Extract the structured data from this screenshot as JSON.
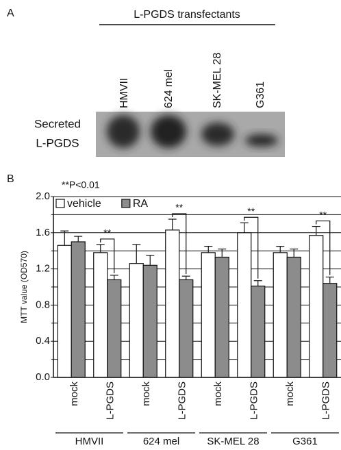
{
  "panel_a": {
    "label": "A",
    "title": "L-PGDS transfectants",
    "lanes": [
      "HMVII",
      "624  mel",
      "SK-MEL 28",
      "G361"
    ],
    "row_label": [
      "Secreted",
      "L-PGDS"
    ]
  },
  "chart_data": {
    "type": "bar",
    "panel_label": "B",
    "annotation": "**P<0.01",
    "y_label": "MTT value (OD570)",
    "categories": [
      "mock",
      "L-PGDS",
      "mock",
      "L-PGDS",
      "mock",
      "L-PGDS",
      "mock",
      "L-PGDS"
    ],
    "groups": [
      "HMVII",
      "624 mel",
      "SK-MEL 28",
      "G361"
    ],
    "series": [
      {
        "name": "vehicle",
        "color": "#ffffff",
        "values": [
          1.46,
          1.38,
          1.26,
          1.63,
          1.38,
          1.6,
          1.38,
          1.57
        ],
        "errors": [
          0.16,
          0.09,
          0.21,
          0.12,
          0.07,
          0.11,
          0.07,
          0.1
        ]
      },
      {
        "name": "RA",
        "color": "#8c8c8c",
        "values": [
          1.5,
          1.08,
          1.24,
          1.08,
          1.33,
          1.01,
          1.33,
          1.04
        ],
        "errors": [
          0.06,
          0.05,
          0.11,
          0.04,
          0.09,
          0.06,
          0.09,
          0.07
        ]
      }
    ],
    "significance_labels": [
      null,
      "**",
      null,
      "**",
      null,
      "**",
      null,
      "**"
    ],
    "ylim": [
      0,
      2
    ],
    "yticks": [
      {
        "value": 0,
        "label": "0.0"
      },
      0.4,
      0.8,
      1.2,
      1.6,
      {
        "value": 2,
        "label": "2.0"
      }
    ],
    "minor_yticks": [
      0.2,
      0.6,
      1.0,
      1.4,
      1.8
    ],
    "grid": true,
    "legend": "top-left"
  }
}
